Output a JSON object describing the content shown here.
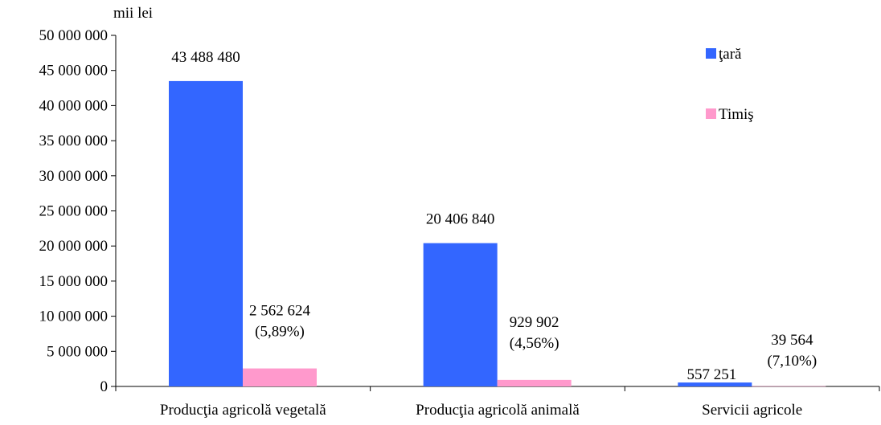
{
  "chart_data": {
    "type": "bar",
    "ylabel": "mii lei",
    "ylim": [
      0,
      50000000
    ],
    "yticks": [
      0,
      5000000,
      10000000,
      15000000,
      20000000,
      25000000,
      30000000,
      35000000,
      40000000,
      45000000,
      50000000
    ],
    "ytick_labels": [
      "0",
      "5 000 000",
      "10 000 000",
      "15 000 000",
      "20 000 000",
      "25 000 000",
      "30 000 000",
      "35 000 000",
      "40 000 000",
      "45 000 000",
      "50 000 000"
    ],
    "categories": [
      "Producţia agricolă vegetală",
      "Producţia agricolă animală",
      "Servicii agricole"
    ],
    "series": [
      {
        "name": "ţară",
        "color": "#3366ff",
        "values": [
          43488480,
          20406840,
          557251
        ],
        "labels": [
          [
            "43 488 480"
          ],
          [
            "20 406 840"
          ],
          [
            "557 251"
          ]
        ]
      },
      {
        "name": "Timiş",
        "color": "#ff99cc",
        "values": [
          2562624,
          929902,
          39564
        ],
        "labels": [
          [
            "2 562 624",
            "(5,89%)"
          ],
          [
            "929 902",
            "(4,56%)"
          ],
          [
            "39 564",
            "(7,10%)"
          ]
        ]
      }
    ],
    "grid": false,
    "legend": "right"
  }
}
